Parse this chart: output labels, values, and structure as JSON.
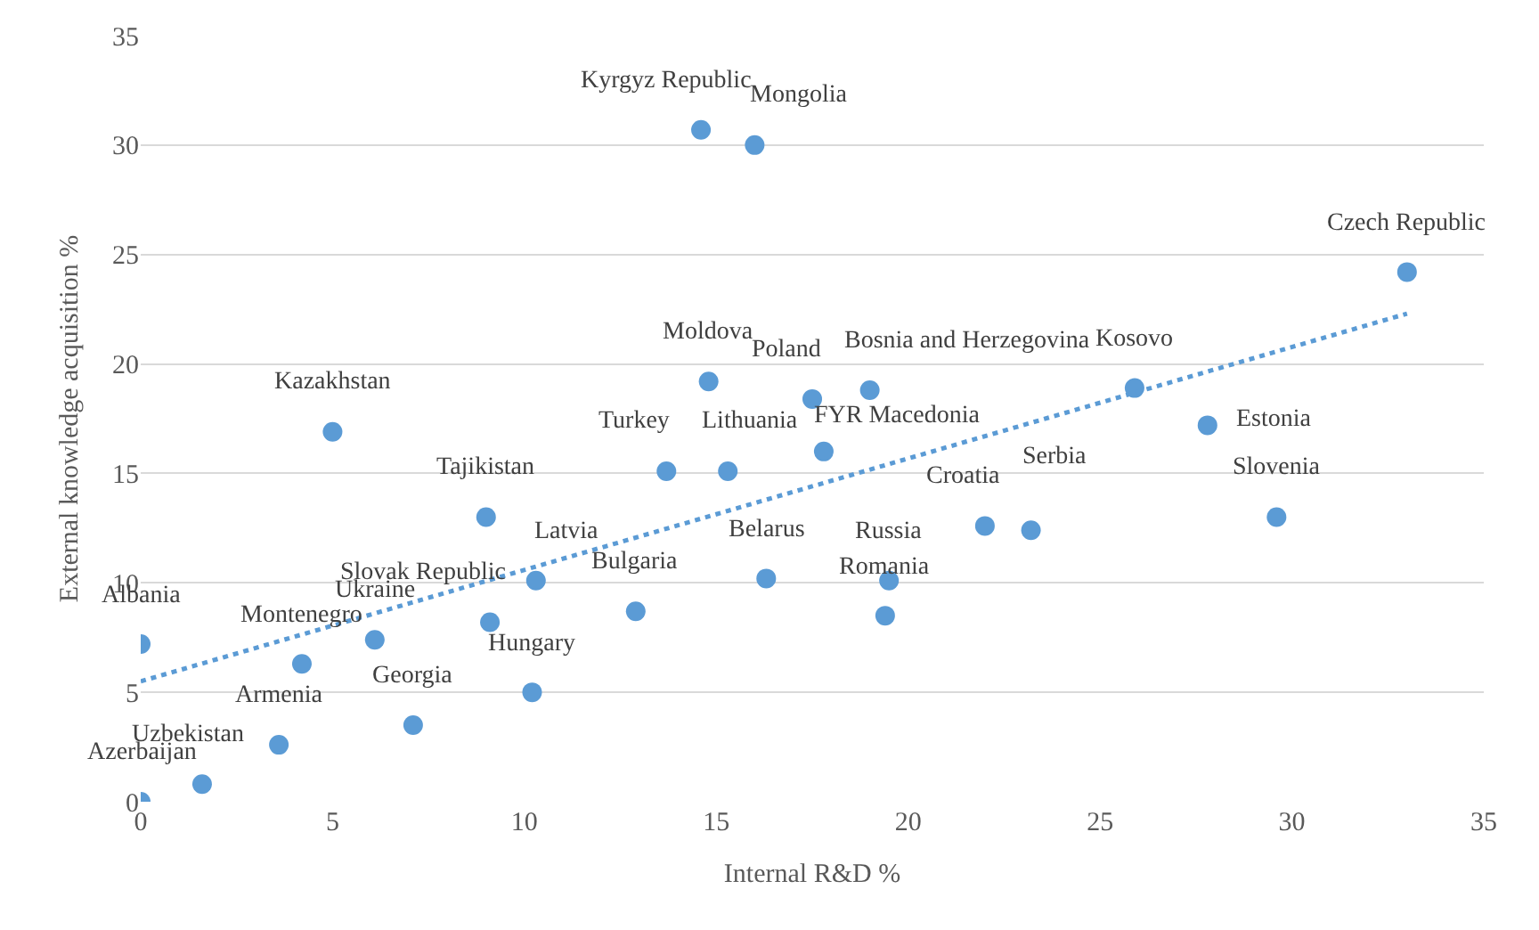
{
  "chart_data": {
    "type": "scatter",
    "xlabel": "Internal R&D %",
    "ylabel": "External knowledge acquisition %",
    "tick_labels": "xy",
    "xlim": [
      0,
      35
    ],
    "xticks": [
      0,
      5,
      10,
      15,
      20,
      25,
      30,
      35
    ],
    "ylim": [
      0,
      35
    ],
    "yticks": [
      0,
      5,
      10,
      15,
      20,
      25,
      30,
      35
    ],
    "grid": "y",
    "series": [
      {
        "color": "#5b9bd5",
        "marker": "circle",
        "x": [
          14.6,
          16.0,
          33.0,
          14.8,
          17.5,
          19.0,
          17.8,
          25.9,
          27.8,
          29.6,
          5.0,
          13.7,
          15.3,
          9.0,
          10.3,
          9.1,
          12.9,
          16.3,
          19.5,
          19.4,
          22.0,
          23.2,
          0,
          4.2,
          6.1,
          10.2,
          7.1,
          3.6,
          1.6,
          0
        ],
        "values": [
          30.7,
          30.0,
          24.2,
          19.2,
          18.4,
          18.8,
          16.0,
          18.9,
          17.2,
          13.0,
          16.9,
          15.1,
          15.1,
          13.0,
          10.1,
          8.2,
          8.7,
          10.2,
          10.1,
          8.5,
          12.6,
          12.4,
          7.2,
          6.3,
          7.4,
          5.0,
          3.5,
          2.6,
          0.8,
          0
        ]
      },
      {
        "type": "line",
        "color": "#5b9bd5",
        "marker": "none",
        "line_style": "dotted",
        "x": [
          0,
          33
        ],
        "values": [
          5.5,
          22.3
        ]
      }
    ],
    "annotations": [
      {
        "text": "Kyrgyz Republic",
        "x": 14.6,
        "y": 30.7
      },
      {
        "text": "Mongolia",
        "x": 16.0,
        "y": 30.0
      },
      {
        "text": "Czech Republic",
        "x": 33.0,
        "y": 24.2
      },
      {
        "text": "Moldova",
        "x": 14.8,
        "y": 19.2
      },
      {
        "text": "Poland",
        "x": 17.5,
        "y": 18.4
      },
      {
        "text": "Bosnia and Herzegovina",
        "x": 19.0,
        "y": 18.8
      },
      {
        "text": "FYR Macedonia",
        "x": 17.8,
        "y": 16.0
      },
      {
        "text": "Kosovo",
        "x": 25.9,
        "y": 18.9
      },
      {
        "text": "Estonia",
        "x": 27.8,
        "y": 17.2
      },
      {
        "text": "Slovenia",
        "x": 29.6,
        "y": 13.0
      },
      {
        "text": "Kazakhstan",
        "x": 5.0,
        "y": 16.9
      },
      {
        "text": "Turkey",
        "x": 13.7,
        "y": 15.1
      },
      {
        "text": "Lithuania",
        "x": 15.3,
        "y": 15.1
      },
      {
        "text": "Tajikistan",
        "x": 9.0,
        "y": 13.0
      },
      {
        "text": "Latvia",
        "x": 10.3,
        "y": 10.1
      },
      {
        "text": "Slovak Republic",
        "x": 9.1,
        "y": 8.2
      },
      {
        "text": "Bulgaria",
        "x": 12.9,
        "y": 8.7
      },
      {
        "text": "Belarus",
        "x": 16.3,
        "y": 10.2
      },
      {
        "text": "Russia",
        "x": 19.5,
        "y": 10.1
      },
      {
        "text": "Romania",
        "x": 19.4,
        "y": 8.5
      },
      {
        "text": "Croatia",
        "x": 22.0,
        "y": 12.6
      },
      {
        "text": "Serbia",
        "x": 23.2,
        "y": 12.4
      },
      {
        "text": "Albania",
        "x": 0,
        "y": 7.2
      },
      {
        "text": "Montenegro",
        "x": 4.2,
        "y": 6.3
      },
      {
        "text": "Ukraine",
        "x": 6.1,
        "y": 7.4
      },
      {
        "text": "Hungary",
        "x": 10.2,
        "y": 5.0
      },
      {
        "text": "Georgia",
        "x": 7.1,
        "y": 3.5
      },
      {
        "text": "Armenia",
        "x": 3.6,
        "y": 2.6
      },
      {
        "text": "Uzbekistan",
        "x": 1.6,
        "y": 0.8
      },
      {
        "text": "Azerbaijan",
        "x": 0,
        "y": 0
      }
    ]
  }
}
